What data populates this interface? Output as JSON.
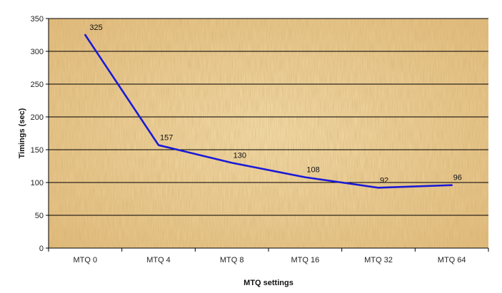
{
  "chart_data": {
    "type": "line",
    "categories": [
      "MTQ 0",
      "MTQ 4",
      "MTQ 8",
      "MTQ 16",
      "MTQ 32",
      "MTQ 64"
    ],
    "series": [
      {
        "values": [
          325,
          157,
          130,
          108,
          92,
          96
        ],
        "color": "#1a1ad6"
      }
    ],
    "data_labels": [
      "325",
      "157",
      "130",
      "108",
      "92",
      "96"
    ],
    "xlabel": "MTQ settings",
    "ylabel": "Timings (sec)",
    "ylim": [
      0,
      350
    ],
    "yticks": [
      0,
      50,
      100,
      150,
      200,
      250,
      300,
      350
    ],
    "ytick_labels": [
      "0",
      "50",
      "100",
      "150",
      "200",
      "250",
      "300",
      "350"
    ],
    "grid": "horizontal",
    "legend": "none",
    "background": "parchment texture",
    "colors": {
      "plot_background": "#e9c98f",
      "plot_background_light": "#f3dba8",
      "plot_background_dark": "#d9b070",
      "gridline": "#000000",
      "line": "#1a1ad6"
    }
  }
}
